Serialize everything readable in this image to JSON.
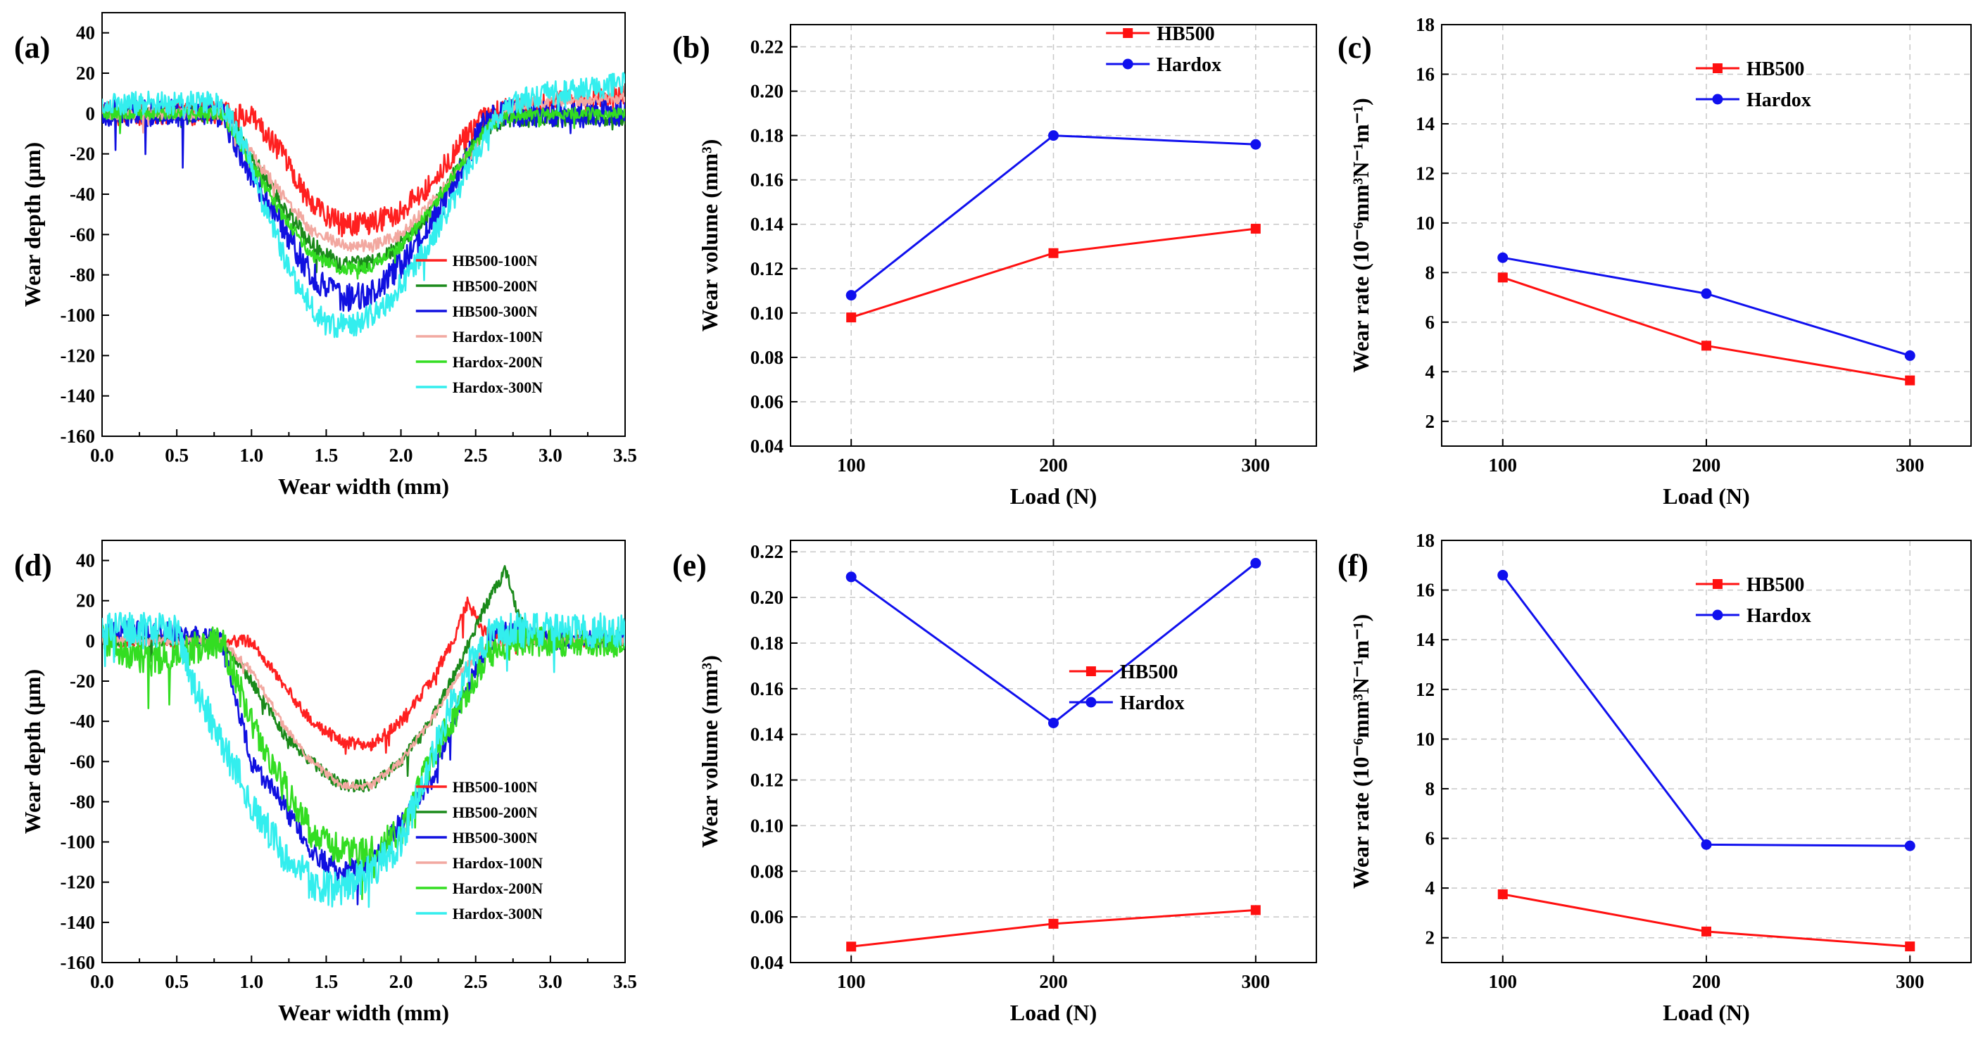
{
  "figure": {
    "colors": {
      "HB500-100N": "#ff2020",
      "HB500-200N": "#1a8a1a",
      "HB500-300N": "#1010e0",
      "Hardox-100N": "#f2a8a0",
      "Hardox-200N": "#33dd22",
      "Hardox-300N": "#33eeee",
      "HB500": "#ff1010",
      "Hardox": "#1010ee"
    }
  },
  "chart_data": [
    {
      "panel": "(a)",
      "type": "line",
      "xlabel": "Wear width (mm)",
      "ylabel": "Wear depth (μm)",
      "xlim": [
        0,
        3.5
      ],
      "ylim": [
        -160,
        50
      ],
      "xticks": [
        "0.0",
        "0.5",
        "1.0",
        "1.5",
        "2.0",
        "2.5",
        "3.0",
        "3.5"
      ],
      "yticks": [
        "40",
        "20",
        "0",
        "-20",
        "-40",
        "-60",
        "-80",
        "-100",
        "-120",
        "-140",
        "-160"
      ],
      "legend": [
        "HB500-100N",
        "HB500-200N",
        "HB500-300N",
        "Hardox-100N",
        "Hardox-200N",
        "Hardox-300N"
      ],
      "legend_position": "bottom-right",
      "series": [
        {
          "name": "HB500-100N",
          "profile": [
            [
              0,
              0
            ],
            [
              0.8,
              0
            ],
            [
              1.0,
              -2
            ],
            [
              1.2,
              -20
            ],
            [
              1.4,
              -45
            ],
            [
              1.6,
              -55
            ],
            [
              1.8,
              -55
            ],
            [
              2.0,
              -48
            ],
            [
              2.2,
              -35
            ],
            [
              2.4,
              -15
            ],
            [
              2.55,
              -3
            ],
            [
              2.7,
              2
            ],
            [
              3.0,
              5
            ],
            [
              3.5,
              8
            ]
          ],
          "noise": 6
        },
        {
          "name": "HB500-200N",
          "profile": [
            [
              0,
              0
            ],
            [
              0.8,
              0
            ],
            [
              0.95,
              -15
            ],
            [
              1.2,
              -45
            ],
            [
              1.4,
              -65
            ],
            [
              1.6,
              -75
            ],
            [
              1.8,
              -74
            ],
            [
              2.0,
              -65
            ],
            [
              2.2,
              -48
            ],
            [
              2.4,
              -25
            ],
            [
              2.55,
              -8
            ],
            [
              2.7,
              -3
            ],
            [
              3.5,
              -2
            ]
          ],
          "noise": 4
        },
        {
          "name": "HB500-300N",
          "profile": [
            [
              0,
              0
            ],
            [
              0.8,
              0
            ],
            [
              1.0,
              -30
            ],
            [
              1.2,
              -55
            ],
            [
              1.4,
              -80
            ],
            [
              1.6,
              -92
            ],
            [
              1.8,
              -90
            ],
            [
              2.0,
              -75
            ],
            [
              2.2,
              -55
            ],
            [
              2.4,
              -30
            ],
            [
              2.55,
              -5
            ],
            [
              2.7,
              0
            ],
            [
              3.5,
              0
            ]
          ],
          "noise": 7
        },
        {
          "name": "Hardox-100N",
          "profile": [
            [
              0,
              0
            ],
            [
              0.8,
              0
            ],
            [
              1.0,
              -20
            ],
            [
              1.2,
              -40
            ],
            [
              1.4,
              -58
            ],
            [
              1.6,
              -65
            ],
            [
              1.8,
              -66
            ],
            [
              2.0,
              -60
            ],
            [
              2.2,
              -45
            ],
            [
              2.4,
              -25
            ],
            [
              2.6,
              -5
            ],
            [
              2.8,
              5
            ],
            [
              3.5,
              8
            ]
          ],
          "noise": 3
        },
        {
          "name": "Hardox-200N",
          "profile": [
            [
              0,
              0
            ],
            [
              0.8,
              0
            ],
            [
              1.0,
              -25
            ],
            [
              1.2,
              -50
            ],
            [
              1.4,
              -70
            ],
            [
              1.6,
              -77
            ],
            [
              1.8,
              -76
            ],
            [
              2.0,
              -66
            ],
            [
              2.2,
              -48
            ],
            [
              2.4,
              -25
            ],
            [
              2.6,
              -5
            ],
            [
              2.8,
              0
            ],
            [
              3.5,
              0
            ]
          ],
          "noise": 3
        },
        {
          "name": "Hardox-300N",
          "profile": [
            [
              0,
              5
            ],
            [
              0.8,
              5
            ],
            [
              0.95,
              -15
            ],
            [
              1.1,
              -50
            ],
            [
              1.3,
              -85
            ],
            [
              1.5,
              -105
            ],
            [
              1.7,
              -105
            ],
            [
              1.9,
              -95
            ],
            [
              2.1,
              -75
            ],
            [
              2.3,
              -50
            ],
            [
              2.5,
              -20
            ],
            [
              2.7,
              5
            ],
            [
              3.0,
              10
            ],
            [
              3.5,
              15
            ]
          ],
          "noise": 6
        }
      ]
    },
    {
      "panel": "(b)",
      "type": "line",
      "xlabel": "Load (N)",
      "ylabel": "Wear volume (mm³)",
      "xlim": [
        70,
        330
      ],
      "ylim": [
        0.04,
        0.23
      ],
      "categories": [
        "100",
        "200",
        "300"
      ],
      "xticks": [
        "100",
        "200",
        "300"
      ],
      "yticks": [
        "0.04",
        "0.06",
        "0.08",
        "0.10",
        "0.12",
        "0.14",
        "0.16",
        "0.18",
        "0.20",
        "0.22"
      ],
      "legend_position": "top-right",
      "series": [
        {
          "name": "HB500",
          "marker": "square",
          "values": [
            0.098,
            0.127,
            0.138
          ]
        },
        {
          "name": "Hardox",
          "marker": "circle",
          "values": [
            0.108,
            0.18,
            0.176
          ]
        }
      ]
    },
    {
      "panel": "(c)",
      "type": "line",
      "xlabel": "Load (N)",
      "ylabel": "Wear rate (10⁻⁶mm³N⁻¹m⁻¹)",
      "xlim": [
        70,
        330
      ],
      "ylim": [
        1,
        18
      ],
      "categories": [
        "100",
        "200",
        "300"
      ],
      "xticks": [
        "100",
        "200",
        "300"
      ],
      "yticks": [
        "2",
        "4",
        "6",
        "8",
        "10",
        "12",
        "14",
        "16",
        "18"
      ],
      "legend_position": "top-right",
      "series": [
        {
          "name": "HB500",
          "marker": "square",
          "values": [
            7.8,
            5.05,
            3.65
          ]
        },
        {
          "name": "Hardox",
          "marker": "circle",
          "values": [
            8.6,
            7.15,
            4.65
          ]
        }
      ]
    },
    {
      "panel": "(d)",
      "type": "line",
      "xlabel": "Wear width (mm)",
      "ylabel": "Wear depth (μm)",
      "xlim": [
        0,
        3.5
      ],
      "ylim": [
        -160,
        50
      ],
      "xticks": [
        "0.0",
        "0.5",
        "1.0",
        "1.5",
        "2.0",
        "2.5",
        "3.0",
        "3.5"
      ],
      "yticks": [
        "40",
        "20",
        "0",
        "-20",
        "-40",
        "-60",
        "-80",
        "-100",
        "-120",
        "-140",
        "-160"
      ],
      "legend": [
        "HB500-100N",
        "HB500-200N",
        "HB500-300N",
        "Hardox-100N",
        "Hardox-200N",
        "Hardox-300N"
      ],
      "legend_position": "bottom-right",
      "series": [
        {
          "name": "HB500-100N",
          "profile": [
            [
              0,
              0
            ],
            [
              0.9,
              0
            ],
            [
              1.0,
              0
            ],
            [
              1.2,
              -20
            ],
            [
              1.4,
              -40
            ],
            [
              1.6,
              -50
            ],
            [
              1.8,
              -52
            ],
            [
              2.0,
              -40
            ],
            [
              2.2,
              -20
            ],
            [
              2.35,
              0
            ],
            [
              2.45,
              20
            ],
            [
              2.55,
              5
            ],
            [
              2.7,
              0
            ],
            [
              3.5,
              0
            ]
          ],
          "noise": 3
        },
        {
          "name": "HB500-200N",
          "profile": [
            [
              0,
              0
            ],
            [
              0.8,
              0
            ],
            [
              1.0,
              -20
            ],
            [
              1.2,
              -45
            ],
            [
              1.4,
              -60
            ],
            [
              1.6,
              -72
            ],
            [
              1.8,
              -72
            ],
            [
              2.0,
              -60
            ],
            [
              2.2,
              -40
            ],
            [
              2.4,
              -10
            ],
            [
              2.55,
              15
            ],
            [
              2.7,
              35
            ],
            [
              2.8,
              10
            ],
            [
              2.9,
              0
            ],
            [
              3.5,
              0
            ]
          ],
          "noise": 3
        },
        {
          "name": "HB500-300N",
          "profile": [
            [
              0,
              5
            ],
            [
              0.5,
              5
            ],
            [
              0.8,
              0
            ],
            [
              1.0,
              -60
            ],
            [
              1.2,
              -80
            ],
            [
              1.4,
              -105
            ],
            [
              1.6,
              -115
            ],
            [
              1.8,
              -110
            ],
            [
              2.0,
              -90
            ],
            [
              2.2,
              -70
            ],
            [
              2.4,
              -30
            ],
            [
              2.6,
              0
            ],
            [
              2.7,
              5
            ],
            [
              3.0,
              0
            ],
            [
              3.5,
              0
            ]
          ],
          "noise": 5
        },
        {
          "name": "Hardox-100N",
          "profile": [
            [
              0,
              0
            ],
            [
              0.8,
              0
            ],
            [
              1.0,
              -15
            ],
            [
              1.2,
              -40
            ],
            [
              1.4,
              -60
            ],
            [
              1.6,
              -72
            ],
            [
              1.8,
              -72
            ],
            [
              2.0,
              -60
            ],
            [
              2.2,
              -40
            ],
            [
              2.4,
              -15
            ],
            [
              2.6,
              -2
            ],
            [
              2.8,
              0
            ],
            [
              3.5,
              0
            ]
          ],
          "noise": 2
        },
        {
          "name": "Hardox-200N",
          "profile": [
            [
              0,
              0
            ],
            [
              0.3,
              -10
            ],
            [
              0.8,
              0
            ],
            [
              1.0,
              -40
            ],
            [
              1.2,
              -70
            ],
            [
              1.4,
              -95
            ],
            [
              1.6,
              -105
            ],
            [
              1.8,
              -105
            ],
            [
              2.0,
              -95
            ],
            [
              2.2,
              -60
            ],
            [
              2.4,
              -30
            ],
            [
              2.6,
              -5
            ],
            [
              2.8,
              0
            ],
            [
              3.5,
              0
            ]
          ],
          "noise": 8
        },
        {
          "name": "Hardox-300N",
          "profile": [
            [
              0,
              5
            ],
            [
              0.5,
              5
            ],
            [
              0.6,
              -20
            ],
            [
              0.8,
              -50
            ],
            [
              1.0,
              -80
            ],
            [
              1.2,
              -105
            ],
            [
              1.4,
              -120
            ],
            [
              1.6,
              -125
            ],
            [
              1.8,
              -115
            ],
            [
              2.0,
              -100
            ],
            [
              2.2,
              -60
            ],
            [
              2.4,
              -20
            ],
            [
              2.6,
              5
            ],
            [
              3.0,
              5
            ],
            [
              3.5,
              5
            ]
          ],
          "noise": 9
        }
      ]
    },
    {
      "panel": "(e)",
      "type": "line",
      "xlabel": "Load (N)",
      "ylabel": "Wear volume (mm³)",
      "xlim": [
        70,
        330
      ],
      "ylim": [
        0.04,
        0.225
      ],
      "categories": [
        "100",
        "200",
        "300"
      ],
      "xticks": [
        "100",
        "200",
        "300"
      ],
      "yticks": [
        "0.04",
        "0.06",
        "0.08",
        "0.10",
        "0.12",
        "0.14",
        "0.16",
        "0.18",
        "0.20",
        "0.22"
      ],
      "legend_position": "center-right",
      "series": [
        {
          "name": "HB500",
          "marker": "square",
          "values": [
            0.047,
            0.057,
            0.063
          ]
        },
        {
          "name": "Hardox",
          "marker": "circle",
          "values": [
            0.209,
            0.145,
            0.215
          ]
        }
      ]
    },
    {
      "panel": "(f)",
      "type": "line",
      "xlabel": "Load (N)",
      "ylabel": "Wear rate (10⁻⁶mm³N⁻¹m⁻¹)",
      "xlim": [
        70,
        330
      ],
      "ylim": [
        1,
        18
      ],
      "categories": [
        "100",
        "200",
        "300"
      ],
      "xticks": [
        "100",
        "200",
        "300"
      ],
      "yticks": [
        "2",
        "4",
        "6",
        "8",
        "10",
        "12",
        "14",
        "16",
        "18"
      ],
      "legend_position": "top-right",
      "series": [
        {
          "name": "HB500",
          "marker": "square",
          "values": [
            3.75,
            2.25,
            1.65
          ]
        },
        {
          "name": "Hardox",
          "marker": "circle",
          "values": [
            16.6,
            5.75,
            5.7
          ]
        }
      ]
    }
  ]
}
